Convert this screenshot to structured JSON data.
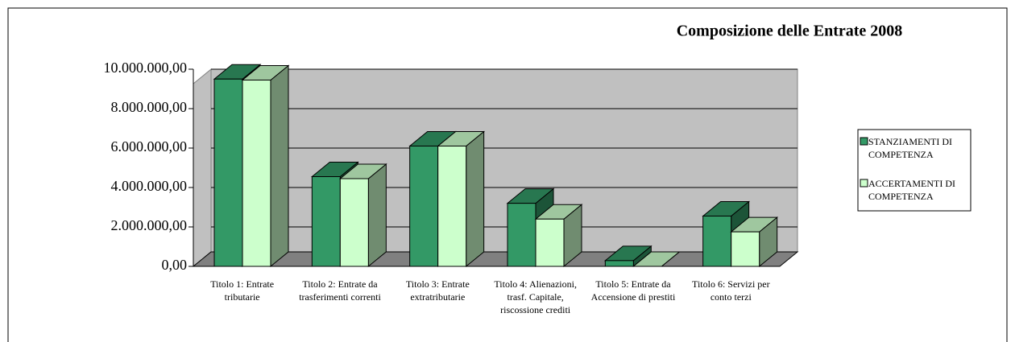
{
  "chart_data": {
    "type": "bar3d",
    "title": "Composizione delle Entrate 2008",
    "categories": [
      "Titolo 1: Entrate tributarie",
      "Titolo 2: Entrate da trasferimenti correnti",
      "Titolo 3: Entrate extratributarie",
      "Titolo 4: Alienazioni, trasf. Capitale, riscossione crediti",
      "Titolo 5: Entrate da Accensione di prestiti",
      "Titolo 6: Servizi per conto terzi"
    ],
    "series": [
      {
        "name": "STANZIAMENTI DI COMPETENZA",
        "color": "#339966",
        "values": [
          9500000,
          4550000,
          6100000,
          3200000,
          290000,
          2550000
        ]
      },
      {
        "name": "ACCERTAMENTI DI COMPETENZA",
        "color": "#ccffcc",
        "values": [
          9450000,
          4450000,
          6100000,
          2400000,
          0,
          1750000
        ]
      }
    ],
    "ylim": [
      0,
      10000000
    ],
    "yticks": [
      {
        "value": 0,
        "label": "0,00"
      },
      {
        "value": 2000000,
        "label": "2.000.000,00"
      },
      {
        "value": 4000000,
        "label": "4.000.000,00"
      },
      {
        "value": 6000000,
        "label": "6.000.000,00"
      },
      {
        "value": 8000000,
        "label": "8.000.000,00"
      },
      {
        "value": 10000000,
        "label": "10.000.000,00"
      }
    ],
    "grid": true,
    "legend": "right"
  }
}
